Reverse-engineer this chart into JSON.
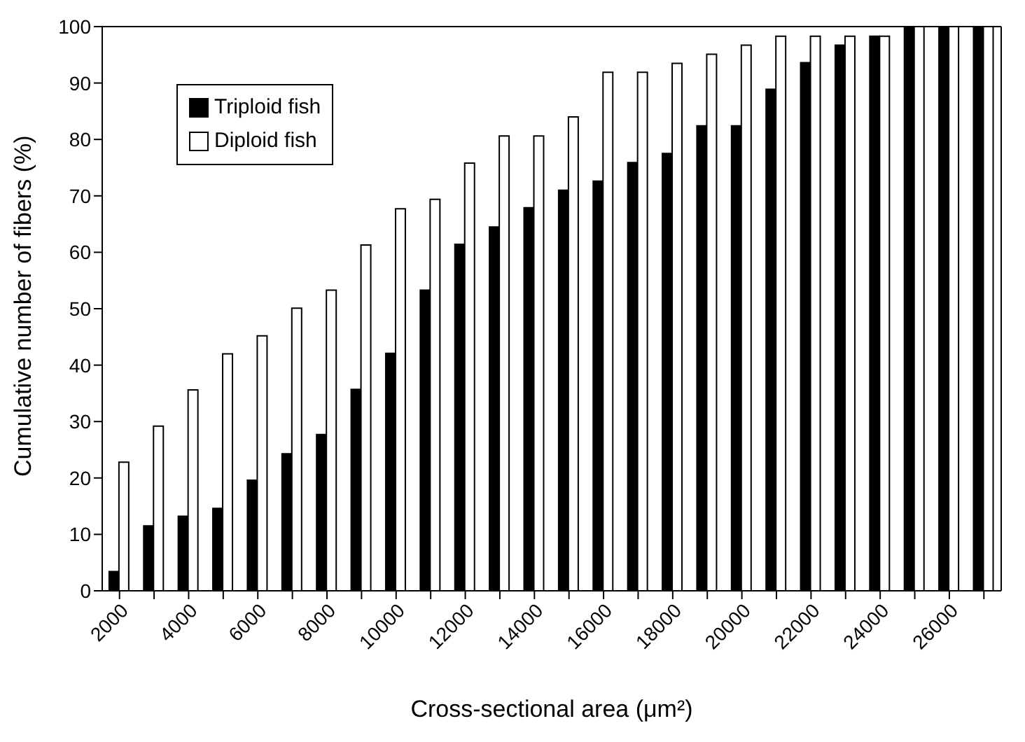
{
  "chart_data": {
    "type": "bar",
    "xlabel": "Cross-sectional area (μm²)",
    "ylabel": "Cumulative number of fibers (%)",
    "categories": [
      "2000",
      null,
      "4000",
      null,
      "6000",
      null,
      "8000",
      null,
      "10000",
      null,
      "12000",
      null,
      "14000",
      null,
      "16000",
      null,
      "18000",
      null,
      "20000",
      null,
      "22000",
      null,
      "24000",
      null,
      "26000",
      null
    ],
    "series": [
      {
        "name": "Triploid fish",
        "color": "#000000",
        "values": [
          3.4,
          11.5,
          13.2,
          14.6,
          19.6,
          24.3,
          27.7,
          35.7,
          42.1,
          53.3,
          61.4,
          64.5,
          67.9,
          71,
          72.6,
          75.9,
          77.5,
          82.4,
          82.4,
          88.9,
          93.6,
          96.7,
          98.3,
          100,
          100,
          100
        ]
      },
      {
        "name": "Diploid fish",
        "color": "#ffffff",
        "values": [
          22.8,
          29.2,
          35.6,
          42,
          45.2,
          50.1,
          53.3,
          61.3,
          67.7,
          69.4,
          75.8,
          80.6,
          80.6,
          84,
          91.9,
          91.9,
          93.5,
          95.1,
          96.7,
          98.3,
          98.3,
          98.3,
          98.3,
          100,
          100,
          100
        ]
      }
    ],
    "ylim": [
      0,
      100
    ],
    "yticks": [
      0,
      10,
      20,
      30,
      40,
      50,
      60,
      70,
      80,
      90,
      100
    ],
    "grid": false,
    "legend": "top left"
  }
}
